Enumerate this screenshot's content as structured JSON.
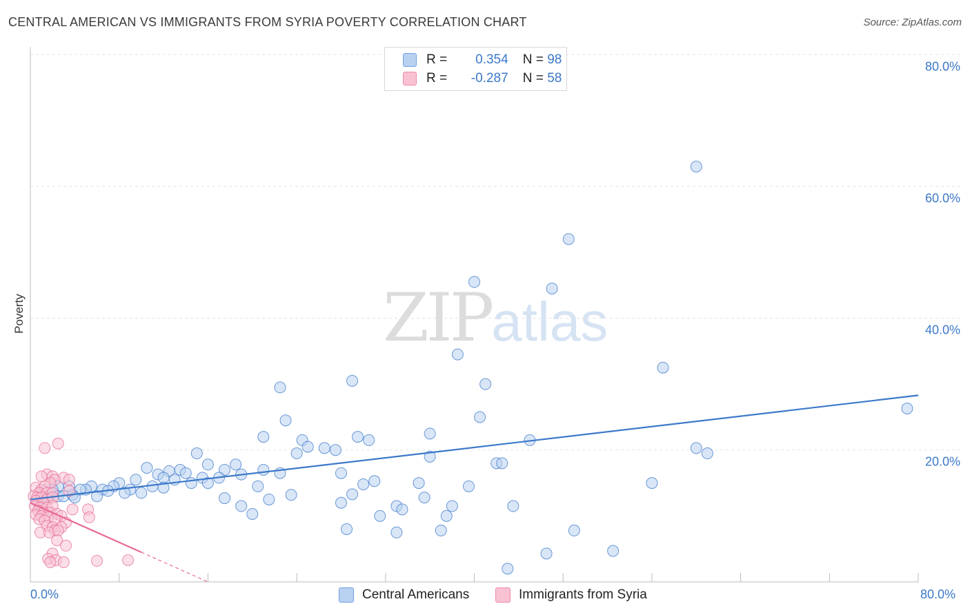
{
  "header": {
    "title": "CENTRAL AMERICAN VS IMMIGRANTS FROM SYRIA POVERTY CORRELATION CHART",
    "source": "Source: ZipAtlas.com"
  },
  "watermark": {
    "zip": "ZIP",
    "atlas": "atlas"
  },
  "legend": {
    "rows": [
      {
        "r_label": "R =",
        "r_value": "0.354",
        "n_label": "N =",
        "n_value": "98",
        "color": "#6fa0e0",
        "fill": "#b9d1f1"
      },
      {
        "r_label": "R =",
        "r_value": "-0.287",
        "n_label": "N =",
        "n_value": "58",
        "color": "#f08aaa",
        "fill": "#f8c2d3"
      }
    ]
  },
  "bottom_legend": {
    "items": [
      {
        "label": "Central Americans",
        "fill": "#b9d1f1",
        "color": "#6fa0e0"
      },
      {
        "label": "Immigrants from Syria",
        "fill": "#f8c2d3",
        "color": "#f08aaa"
      }
    ]
  },
  "chart_data": {
    "type": "scatter",
    "title": "CENTRAL AMERICAN VS IMMIGRANTS FROM SYRIA POVERTY CORRELATION CHART",
    "xlabel": "",
    "ylabel": "Poverty",
    "xlim": [
      0,
      80
    ],
    "ylim": [
      0,
      80
    ],
    "x_tick_labels": [
      "0.0%",
      "80.0%"
    ],
    "y_ticks": [
      20,
      40,
      60,
      80
    ],
    "y_tick_labels": [
      "20.0%",
      "40.0%",
      "60.0%",
      "80.0%"
    ],
    "grid": true,
    "series": [
      {
        "name": "Central Americans",
        "color": "#3b78c9",
        "fill": "#b9d1f1",
        "trend": {
          "x": [
            0,
            80
          ],
          "y": [
            12.5,
            28.3
          ]
        },
        "points": [
          [
            60,
            63
          ],
          [
            48.5,
            52
          ],
          [
            40,
            45.5
          ],
          [
            47,
            44.5
          ],
          [
            38.5,
            34.5
          ],
          [
            29,
            30.5
          ],
          [
            41,
            30
          ],
          [
            57,
            32.5
          ],
          [
            22.5,
            29.5
          ],
          [
            79,
            26.3
          ],
          [
            40.5,
            25
          ],
          [
            23,
            24.5
          ],
          [
            21,
            22
          ],
          [
            36,
            22.5
          ],
          [
            29.5,
            22
          ],
          [
            30.5,
            21.5
          ],
          [
            24.5,
            21.5
          ],
          [
            25,
            20.5
          ],
          [
            26.5,
            20.3
          ],
          [
            27.5,
            20
          ],
          [
            45,
            21.5
          ],
          [
            60,
            20.3
          ],
          [
            61,
            19.5
          ],
          [
            24,
            19.5
          ],
          [
            15,
            19.5
          ],
          [
            36,
            19
          ],
          [
            16,
            17.8
          ],
          [
            18.5,
            17.8
          ],
          [
            42,
            18
          ],
          [
            42.5,
            18
          ],
          [
            13.5,
            17
          ],
          [
            17.5,
            17
          ],
          [
            21,
            17
          ],
          [
            22.5,
            16.5
          ],
          [
            19,
            16.3
          ],
          [
            28,
            16.5
          ],
          [
            10.5,
            17.3
          ],
          [
            12.5,
            16.8
          ],
          [
            11.5,
            16.3
          ],
          [
            14,
            16.5
          ],
          [
            13,
            15.5
          ],
          [
            15.5,
            15.8
          ],
          [
            17,
            15.8
          ],
          [
            35,
            15
          ],
          [
            31,
            15.3
          ],
          [
            9.5,
            15.5
          ],
          [
            12,
            15.8
          ],
          [
            14.5,
            15
          ],
          [
            16,
            15
          ],
          [
            20.5,
            14.5
          ],
          [
            30,
            14.8
          ],
          [
            8,
            15
          ],
          [
            9,
            14
          ],
          [
            11,
            14.5
          ],
          [
            12,
            14.3
          ],
          [
            7.5,
            14.5
          ],
          [
            5.5,
            14.5
          ],
          [
            6.5,
            14
          ],
          [
            7,
            13.8
          ],
          [
            8.5,
            13.5
          ],
          [
            10,
            13.5
          ],
          [
            5,
            14
          ],
          [
            4.5,
            14
          ],
          [
            3.5,
            14.5
          ],
          [
            2.5,
            14.5
          ],
          [
            2,
            14
          ],
          [
            2.5,
            13
          ],
          [
            1,
            13
          ],
          [
            1.5,
            12.5
          ],
          [
            3,
            13
          ],
          [
            23.5,
            13.2
          ],
          [
            29,
            13.3
          ],
          [
            35.5,
            12.8
          ],
          [
            17.5,
            12.7
          ],
          [
            21.5,
            12.5
          ],
          [
            56,
            15
          ],
          [
            39.5,
            14.5
          ],
          [
            28,
            12
          ],
          [
            33,
            11.5
          ],
          [
            33.5,
            11
          ],
          [
            38,
            11.5
          ],
          [
            43.5,
            11.5
          ],
          [
            19,
            11.5
          ],
          [
            20,
            10.3
          ],
          [
            31.5,
            10
          ],
          [
            37.5,
            10
          ],
          [
            28.5,
            8
          ],
          [
            33,
            7.5
          ],
          [
            37,
            7.8
          ],
          [
            49,
            7.8
          ],
          [
            46.5,
            4.3
          ],
          [
            52.5,
            4.7
          ],
          [
            43,
            2
          ],
          [
            1.2,
            13.8
          ],
          [
            0.8,
            12
          ],
          [
            3.8,
            13.2
          ],
          [
            6,
            13
          ],
          [
            4,
            12.8
          ]
        ]
      },
      {
        "name": "Immigrants from Syria",
        "color": "#e76a94",
        "fill": "#f8c2d3",
        "trend": {
          "x": [
            0,
            10
          ],
          "y": [
            12,
            4.5
          ]
        },
        "trend_dashed": {
          "x": [
            10,
            16
          ],
          "y": [
            4.5,
            0
          ]
        },
        "points": [
          [
            2.5,
            21
          ],
          [
            1.3,
            20.3
          ],
          [
            1.5,
            16.3
          ],
          [
            1,
            16
          ],
          [
            2,
            16
          ],
          [
            3,
            15.8
          ],
          [
            3.5,
            15.5
          ],
          [
            2.2,
            15.5
          ],
          [
            1.8,
            15
          ],
          [
            0.5,
            14.3
          ],
          [
            1,
            14
          ],
          [
            1.3,
            14.5
          ],
          [
            0.8,
            13.5
          ],
          [
            1.5,
            13.5
          ],
          [
            2,
            13.5
          ],
          [
            0.3,
            13
          ],
          [
            0.6,
            12.8
          ],
          [
            1,
            12.8
          ],
          [
            1.5,
            12.5
          ],
          [
            2,
            12.8
          ],
          [
            0.5,
            12.3
          ],
          [
            1.2,
            12
          ],
          [
            0.4,
            11.5
          ],
          [
            0.9,
            11.3
          ],
          [
            1.5,
            11.3
          ],
          [
            2,
            11.5
          ],
          [
            0.7,
            10.8
          ],
          [
            1.2,
            10.5
          ],
          [
            1.8,
            10.5
          ],
          [
            2.4,
            10.3
          ],
          [
            0.5,
            10.2
          ],
          [
            1,
            10
          ],
          [
            1.6,
            9.8
          ],
          [
            2.8,
            10
          ],
          [
            3.8,
            11
          ],
          [
            5.2,
            11
          ],
          [
            0.8,
            9.5
          ],
          [
            1.3,
            9.3
          ],
          [
            2.2,
            9.5
          ],
          [
            3.2,
            9
          ],
          [
            5.3,
            9.8
          ],
          [
            1.5,
            8.5
          ],
          [
            2,
            8.3
          ],
          [
            2.8,
            8.3
          ],
          [
            2.2,
            7.8
          ],
          [
            0.9,
            7.5
          ],
          [
            1.7,
            7.5
          ],
          [
            2.5,
            7.8
          ],
          [
            2.4,
            6.3
          ],
          [
            3.2,
            5.5
          ],
          [
            2,
            4.3
          ],
          [
            1.6,
            3.5
          ],
          [
            2.3,
            3.3
          ],
          [
            3,
            3
          ],
          [
            1.8,
            3
          ],
          [
            6,
            3.2
          ],
          [
            8.8,
            3.3
          ],
          [
            3.5,
            13.8
          ]
        ]
      }
    ]
  }
}
